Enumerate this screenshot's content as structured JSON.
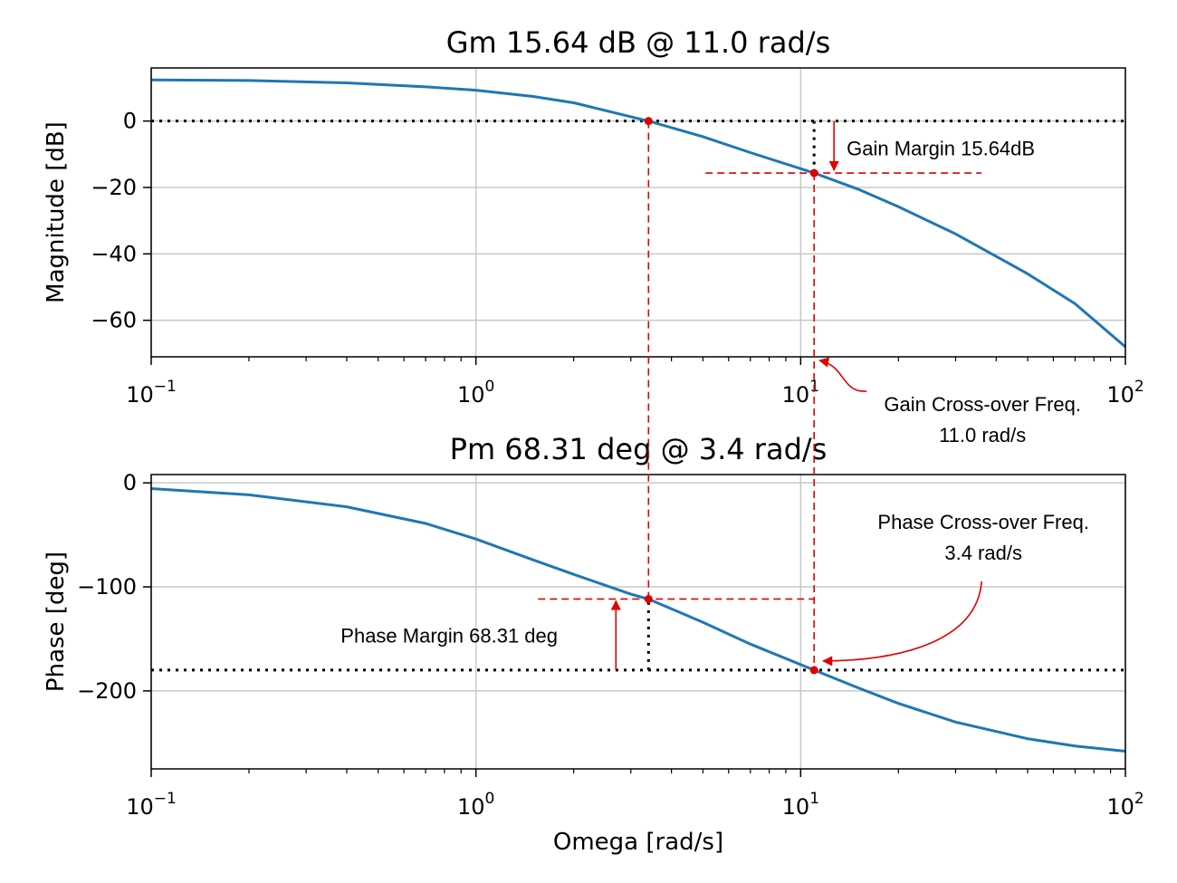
{
  "chart_data": [
    {
      "type": "line",
      "title": "Gm 15.64 dB @ 11.0 rad/s",
      "xlabel": "",
      "ylabel": "Magnitude [dB]",
      "xscale": "log",
      "xlim": [
        0.1,
        100
      ],
      "ylim": [
        -71,
        16
      ],
      "grid": true,
      "x_ticks": [
        0.1,
        1,
        10,
        100
      ],
      "x_tick_labels": [
        {
          "base": "10",
          "exp": "−1"
        },
        {
          "base": "10",
          "exp": "0"
        },
        {
          "base": "10",
          "exp": "1"
        },
        {
          "base": "10",
          "exp": "2"
        }
      ],
      "y_ticks": [
        0,
        -20,
        -40,
        -60
      ],
      "y_tick_labels": [
        "0",
        "−20",
        "−40",
        "−60"
      ],
      "series": [
        {
          "color": "#1f77b4",
          "x": [
            0.1,
            0.2,
            0.4,
            0.7,
            1.0,
            1.5,
            2.0,
            3.0,
            3.4,
            5.0,
            7.0,
            11.0,
            15.0,
            20.0,
            30.0,
            50.0,
            70.0,
            100.0
          ],
          "y": [
            12.4,
            12.2,
            11.5,
            10.3,
            9.3,
            7.4,
            5.5,
            1.3,
            0.0,
            -4.7,
            -9.5,
            -15.64,
            -20.5,
            -25.8,
            -34.0,
            -46.0,
            -55.0,
            -68.0
          ]
        }
      ],
      "reference_line": {
        "y": 0,
        "style": "dotted"
      },
      "margin_marker": {
        "x": 11.0,
        "y_from": 0,
        "y_to": -15.64
      },
      "points": [
        {
          "x": 3.4,
          "y": 0
        },
        {
          "x": 11.0,
          "y": -15.64
        }
      ],
      "annotations": {
        "gain_margin": "Gain Margin 15.64dB",
        "gain_crossover_line1": "Gain Cross-over Freq.",
        "gain_crossover_line2": "11.0 rad/s"
      }
    },
    {
      "type": "line",
      "title": "Pm 68.31 deg @ 3.4 rad/s",
      "xlabel": "Omega [rad/s]",
      "ylabel": "Phase [deg]",
      "xscale": "log",
      "xlim": [
        0.1,
        100
      ],
      "ylim": [
        -275,
        8
      ],
      "grid": true,
      "x_ticks": [
        0.1,
        1,
        10,
        100
      ],
      "x_tick_labels": [
        {
          "base": "10",
          "exp": "−1"
        },
        {
          "base": "10",
          "exp": "0"
        },
        {
          "base": "10",
          "exp": "1"
        },
        {
          "base": "10",
          "exp": "2"
        }
      ],
      "y_ticks": [
        0,
        -100,
        -200
      ],
      "y_tick_labels": [
        "0",
        "−100",
        "−200"
      ],
      "series": [
        {
          "color": "#1f77b4",
          "x": [
            0.1,
            0.2,
            0.4,
            0.7,
            1.0,
            1.5,
            2.0,
            3.0,
            3.4,
            5.0,
            7.0,
            11.0,
            15.0,
            20.0,
            30.0,
            50.0,
            70.0,
            100.0
          ],
          "y": [
            -5.5,
            -11.5,
            -23.0,
            -39.0,
            -54.0,
            -74.0,
            -88.0,
            -107.0,
            -111.69,
            -134.0,
            -155.0,
            -180.0,
            -197.0,
            -212.0,
            -230.0,
            -246.0,
            -253.0,
            -258.0
          ]
        }
      ],
      "reference_line": {
        "y": -180,
        "style": "dotted"
      },
      "margin_marker": {
        "x": 3.4,
        "y_from": -180,
        "y_to": -111.69
      },
      "points": [
        {
          "x": 3.4,
          "y": -111.69
        },
        {
          "x": 11.0,
          "y": -180
        }
      ],
      "annotations": {
        "phase_margin": "Phase Margin 68.31 deg",
        "phase_crossover_line1": "Phase Cross-over Freq.",
        "phase_crossover_line2": "3.4 rad/s"
      }
    }
  ],
  "colors": {
    "line": "#1f77b4",
    "annotation": "#e00000",
    "grid": "#c8c8c8",
    "reference": "#000000"
  }
}
